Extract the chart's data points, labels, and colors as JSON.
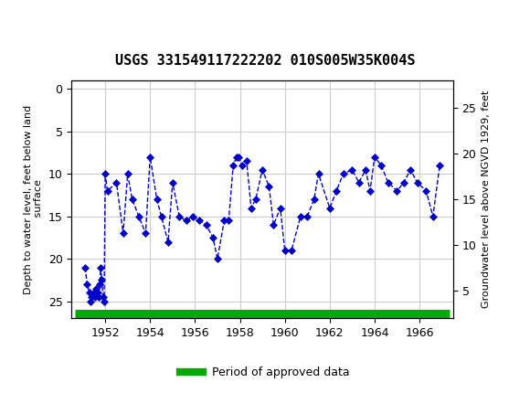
{
  "title": "USGS 331549117222202 010S005W35K004S",
  "ylabel_left": "Depth to water level, feet below land\n surface",
  "ylabel_right": "Groundwater level above NGVD 1929, feet",
  "header_color": "#1a6b3c",
  "line_color": "#0000cc",
  "line_style": "--",
  "marker": "D",
  "marker_size": 4,
  "marker_color": "#0000cc",
  "ylim_left": [
    27,
    -1
  ],
  "ylim_right": [
    2,
    28
  ],
  "yticks_left": [
    0,
    5,
    10,
    15,
    20,
    25
  ],
  "yticks_right": [
    5,
    10,
    15,
    20,
    25
  ],
  "xlim": [
    1950.5,
    1967.5
  ],
  "xticks": [
    1952,
    1954,
    1956,
    1958,
    1960,
    1962,
    1964,
    1966
  ],
  "grid_color": "#cccccc",
  "approved_bar_color": "#00aa00",
  "legend_label": "Period of approved data",
  "data_x": [
    1951.1,
    1951.2,
    1951.3,
    1951.35,
    1951.4,
    1951.5,
    1951.55,
    1951.6,
    1951.65,
    1951.7,
    1951.75,
    1951.8,
    1951.85,
    1951.9,
    1951.95,
    1952.0,
    1952.1,
    1952.5,
    1952.8,
    1953.0,
    1953.2,
    1953.5,
    1953.8,
    1954.0,
    1954.3,
    1954.5,
    1954.8,
    1955.0,
    1955.3,
    1955.6,
    1955.9,
    1956.2,
    1956.5,
    1956.8,
    1957.0,
    1957.3,
    1957.5,
    1957.7,
    1957.85,
    1957.95,
    1958.1,
    1958.3,
    1958.5,
    1958.7,
    1959.0,
    1959.3,
    1959.5,
    1959.8,
    1960.0,
    1960.3,
    1960.7,
    1961.0,
    1961.3,
    1961.5,
    1962.0,
    1962.3,
    1962.6,
    1963.0,
    1963.3,
    1963.6,
    1963.8,
    1964.0,
    1964.3,
    1964.6,
    1965.0,
    1965.3,
    1965.6,
    1965.9,
    1966.3,
    1966.6,
    1966.9
  ],
  "data_y": [
    21,
    23,
    24,
    25,
    24.5,
    24,
    24.5,
    23.5,
    24,
    24.5,
    23,
    21,
    22.5,
    24.5,
    25,
    10,
    12,
    11,
    17,
    10,
    13,
    15,
    17,
    8,
    13,
    15,
    18,
    11,
    15,
    15.5,
    15,
    15.5,
    16,
    17.5,
    20,
    15.5,
    15.5,
    9,
    8,
    8,
    9,
    8.5,
    14,
    13,
    9.5,
    11.5,
    16,
    14,
    19,
    19,
    15,
    15,
    13,
    10,
    14,
    12,
    10,
    9.5,
    11,
    9.5,
    12,
    8,
    9,
    11,
    12,
    11,
    9.5,
    11,
    12,
    15,
    9
  ],
  "background_color": "#ffffff",
  "plot_bg_color": "#ffffff"
}
